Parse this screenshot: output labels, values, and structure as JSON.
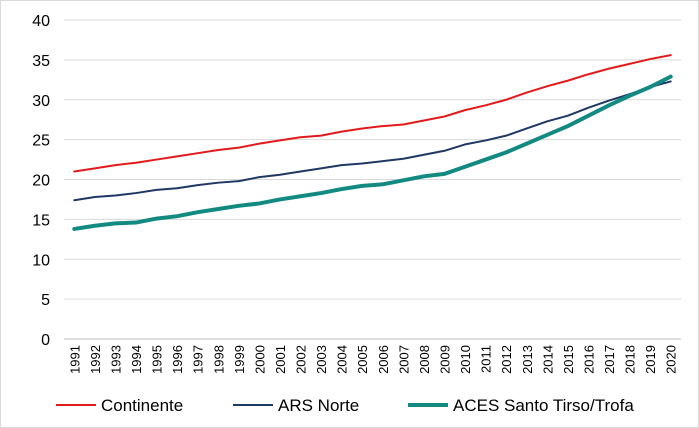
{
  "chart_data": {
    "type": "line",
    "title": "",
    "xlabel": "",
    "ylabel": "",
    "ylim": [
      0,
      40
    ],
    "yticks": [
      0,
      5,
      10,
      15,
      20,
      25,
      30,
      35,
      40
    ],
    "grid": true,
    "legend_position": "bottom",
    "x": [
      "1991",
      "1992",
      "1993",
      "1994",
      "1995",
      "1996",
      "1997",
      "1998",
      "1999",
      "2000",
      "2001",
      "2002",
      "2003",
      "2004",
      "2005",
      "2006",
      "2007",
      "2008",
      "2009",
      "2010",
      "2011",
      "2012",
      "2013",
      "2014",
      "2015",
      "2016",
      "2017",
      "2018",
      "2019",
      "2020"
    ],
    "series": [
      {
        "name": "Continente",
        "color": "#e31a1c",
        "width": 2,
        "values": [
          21.0,
          21.4,
          21.8,
          22.1,
          22.5,
          22.9,
          23.3,
          23.7,
          24.0,
          24.5,
          24.9,
          25.3,
          25.5,
          26.0,
          26.4,
          26.7,
          26.9,
          27.4,
          27.9,
          28.7,
          29.3,
          30.0,
          30.9,
          31.7,
          32.4,
          33.2,
          33.9,
          34.5,
          35.1,
          35.6
        ]
      },
      {
        "name": "ARS Norte",
        "color": "#1f3864",
        "width": 2,
        "values": [
          17.4,
          17.8,
          18.0,
          18.3,
          18.7,
          18.9,
          19.3,
          19.6,
          19.8,
          20.3,
          20.6,
          21.0,
          21.4,
          21.8,
          22.0,
          22.3,
          22.6,
          23.1,
          23.6,
          24.4,
          24.9,
          25.5,
          26.4,
          27.3,
          28.0,
          29.0,
          29.9,
          30.7,
          31.6,
          32.3
        ]
      },
      {
        "name": "ACES Santo Tirso/Trofa",
        "color": "#138a81",
        "width": 4,
        "values": [
          13.8,
          14.2,
          14.5,
          14.6,
          15.1,
          15.4,
          15.9,
          16.3,
          16.7,
          17.0,
          17.5,
          17.9,
          18.3,
          18.8,
          19.2,
          19.4,
          19.9,
          20.4,
          20.7,
          21.6,
          22.5,
          23.4,
          24.5,
          25.6,
          26.7,
          28.0,
          29.3,
          30.5,
          31.6,
          32.9
        ]
      }
    ]
  }
}
